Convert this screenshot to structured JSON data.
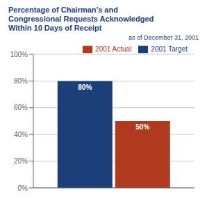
{
  "chart_data": {
    "type": "bar",
    "title": "Percentage of Chairman’s and\nCongressional Requests Acknowledged\nWithin 10 Days of Receipt",
    "subtitle": "as of December 31, 2001",
    "categories": [
      null
    ],
    "series": [
      {
        "name": "2001 Target",
        "color": "#1c3f7a",
        "values": [
          80
        ],
        "value_labels": [
          "80%"
        ]
      },
      {
        "name": "2001 Actual",
        "color": "#b03a1e",
        "values": [
          50
        ],
        "value_labels": [
          "50%"
        ]
      }
    ],
    "ylim": [
      0,
      100
    ],
    "yticks": [
      {
        "value": 0,
        "label": "0%"
      },
      {
        "value": 20,
        "label": "20%"
      },
      {
        "value": 40,
        "label": "40%"
      },
      {
        "value": 60,
        "label": "60%"
      },
      {
        "value": 80,
        "label": "80%"
      },
      {
        "value": 100,
        "label": "100%"
      }
    ],
    "grid": true,
    "legend": "upper right",
    "data_labels": true,
    "tick_labels": "y"
  }
}
